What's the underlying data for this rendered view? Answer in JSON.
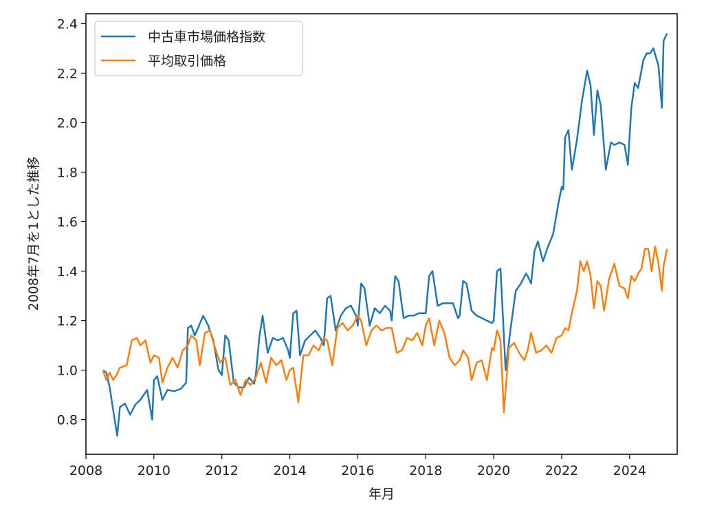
{
  "chart_data": {
    "type": "line",
    "title": "",
    "xlabel": "年月",
    "ylabel": "2008年7月を1とした推移",
    "xlim": [
      2008.0,
      2025.4
    ],
    "ylim": [
      0.66,
      2.44
    ],
    "x_ticks": [
      2008,
      2010,
      2012,
      2014,
      2016,
      2018,
      2020,
      2022,
      2024
    ],
    "y_ticks": [
      0.8,
      1.0,
      1.2,
      1.4,
      1.6,
      1.8,
      2.0,
      2.2,
      2.4
    ],
    "y_tick_labels": [
      "0.8",
      "1.0",
      "1.2",
      "1.4",
      "1.6",
      "1.8",
      "2.0",
      "2.2",
      "2.4"
    ],
    "grid": false,
    "legend_position": "top-left",
    "series": [
      {
        "name": "中古車市場価格指数",
        "color": "#1f77b4",
        "points": [
          [
            2008.5,
            1.0
          ],
          [
            2008.6,
            0.99
          ],
          [
            2008.7,
            0.93
          ],
          [
            2008.8,
            0.84
          ],
          [
            2008.92,
            0.735
          ],
          [
            2009.0,
            0.85
          ],
          [
            2009.15,
            0.865
          ],
          [
            2009.3,
            0.82
          ],
          [
            2009.45,
            0.86
          ],
          [
            2009.6,
            0.88
          ],
          [
            2009.8,
            0.92
          ],
          [
            2009.95,
            0.8
          ],
          [
            2010.0,
            0.96
          ],
          [
            2010.1,
            0.975
          ],
          [
            2010.25,
            0.88
          ],
          [
            2010.4,
            0.92
          ],
          [
            2010.6,
            0.915
          ],
          [
            2010.8,
            0.925
          ],
          [
            2010.95,
            0.95
          ],
          [
            2011.0,
            1.17
          ],
          [
            2011.1,
            1.18
          ],
          [
            2011.2,
            1.14
          ],
          [
            2011.3,
            1.17
          ],
          [
            2011.45,
            1.22
          ],
          [
            2011.6,
            1.18
          ],
          [
            2011.75,
            1.12
          ],
          [
            2011.9,
            1.0
          ],
          [
            2012.0,
            0.98
          ],
          [
            2012.1,
            1.14
          ],
          [
            2012.2,
            1.12
          ],
          [
            2012.35,
            0.95
          ],
          [
            2012.5,
            0.93
          ],
          [
            2012.65,
            0.93
          ],
          [
            2012.8,
            0.97
          ],
          [
            2012.95,
            0.945
          ],
          [
            2013.0,
            0.98
          ],
          [
            2013.1,
            1.13
          ],
          [
            2013.2,
            1.22
          ],
          [
            2013.35,
            1.07
          ],
          [
            2013.5,
            1.13
          ],
          [
            2013.65,
            1.12
          ],
          [
            2013.8,
            1.13
          ],
          [
            2013.95,
            1.08
          ],
          [
            2014.0,
            1.05
          ],
          [
            2014.1,
            1.23
          ],
          [
            2014.2,
            1.24
          ],
          [
            2014.3,
            1.06
          ],
          [
            2014.45,
            1.12
          ],
          [
            2014.6,
            1.14
          ],
          [
            2014.75,
            1.16
          ],
          [
            2014.9,
            1.13
          ],
          [
            2015.0,
            1.1
          ],
          [
            2015.1,
            1.29
          ],
          [
            2015.2,
            1.3
          ],
          [
            2015.35,
            1.16
          ],
          [
            2015.5,
            1.22
          ],
          [
            2015.65,
            1.25
          ],
          [
            2015.8,
            1.26
          ],
          [
            2015.95,
            1.22
          ],
          [
            2016.0,
            1.18
          ],
          [
            2016.1,
            1.35
          ],
          [
            2016.2,
            1.33
          ],
          [
            2016.35,
            1.18
          ],
          [
            2016.5,
            1.25
          ],
          [
            2016.65,
            1.23
          ],
          [
            2016.8,
            1.26
          ],
          [
            2016.95,
            1.24
          ],
          [
            2017.0,
            1.2
          ],
          [
            2017.1,
            1.38
          ],
          [
            2017.2,
            1.36
          ],
          [
            2017.35,
            1.21
          ],
          [
            2017.5,
            1.22
          ],
          [
            2017.65,
            1.22
          ],
          [
            2017.8,
            1.23
          ],
          [
            2017.95,
            1.23
          ],
          [
            2018.0,
            1.23
          ],
          [
            2018.1,
            1.38
          ],
          [
            2018.2,
            1.4
          ],
          [
            2018.35,
            1.26
          ],
          [
            2018.5,
            1.27
          ],
          [
            2018.65,
            1.27
          ],
          [
            2018.8,
            1.27
          ],
          [
            2018.95,
            1.21
          ],
          [
            2019.0,
            1.22
          ],
          [
            2019.1,
            1.36
          ],
          [
            2019.2,
            1.35
          ],
          [
            2019.35,
            1.24
          ],
          [
            2019.5,
            1.22
          ],
          [
            2019.65,
            1.21
          ],
          [
            2019.8,
            1.2
          ],
          [
            2019.95,
            1.19
          ],
          [
            2020.0,
            1.2
          ],
          [
            2020.1,
            1.4
          ],
          [
            2020.2,
            1.41
          ],
          [
            2020.35,
            1.0
          ],
          [
            2020.5,
            1.17
          ],
          [
            2020.65,
            1.32
          ],
          [
            2020.8,
            1.35
          ],
          [
            2020.95,
            1.39
          ],
          [
            2021.0,
            1.38
          ],
          [
            2021.1,
            1.35
          ],
          [
            2021.2,
            1.48
          ],
          [
            2021.3,
            1.52
          ],
          [
            2021.45,
            1.44
          ],
          [
            2021.6,
            1.5
          ],
          [
            2021.75,
            1.55
          ],
          [
            2021.9,
            1.67
          ],
          [
            2022.0,
            1.74
          ],
          [
            2022.05,
            1.73
          ],
          [
            2022.1,
            1.94
          ],
          [
            2022.2,
            1.97
          ],
          [
            2022.3,
            1.81
          ],
          [
            2022.45,
            1.93
          ],
          [
            2022.6,
            2.09
          ],
          [
            2022.75,
            2.21
          ],
          [
            2022.85,
            2.15
          ],
          [
            2022.95,
            1.95
          ],
          [
            2023.05,
            2.13
          ],
          [
            2023.15,
            2.07
          ],
          [
            2023.3,
            1.81
          ],
          [
            2023.45,
            1.92
          ],
          [
            2023.55,
            1.91
          ],
          [
            2023.7,
            1.92
          ],
          [
            2023.85,
            1.91
          ],
          [
            2023.95,
            1.83
          ],
          [
            2024.05,
            2.06
          ],
          [
            2024.15,
            2.16
          ],
          [
            2024.25,
            2.14
          ],
          [
            2024.4,
            2.25
          ],
          [
            2024.5,
            2.28
          ],
          [
            2024.6,
            2.28
          ],
          [
            2024.7,
            2.3
          ],
          [
            2024.85,
            2.23
          ],
          [
            2024.95,
            2.06
          ],
          [
            2025.0,
            2.33
          ],
          [
            2025.1,
            2.36
          ]
        ]
      },
      {
        "name": "平均取引価格",
        "color": "#ff7f0e",
        "points": [
          [
            2008.5,
            1.0
          ],
          [
            2008.6,
            0.96
          ],
          [
            2008.7,
            0.99
          ],
          [
            2008.8,
            0.96
          ],
          [
            2008.9,
            0.98
          ],
          [
            2009.0,
            1.01
          ],
          [
            2009.2,
            1.02
          ],
          [
            2009.35,
            1.12
          ],
          [
            2009.5,
            1.13
          ],
          [
            2009.6,
            1.1
          ],
          [
            2009.75,
            1.12
          ],
          [
            2009.9,
            1.03
          ],
          [
            2010.0,
            1.06
          ],
          [
            2010.15,
            1.05
          ],
          [
            2010.25,
            0.95
          ],
          [
            2010.4,
            1.01
          ],
          [
            2010.55,
            1.05
          ],
          [
            2010.7,
            1.01
          ],
          [
            2010.85,
            1.08
          ],
          [
            2011.0,
            1.1
          ],
          [
            2011.1,
            1.14
          ],
          [
            2011.25,
            1.12
          ],
          [
            2011.35,
            1.02
          ],
          [
            2011.5,
            1.15
          ],
          [
            2011.65,
            1.16
          ],
          [
            2011.8,
            1.09
          ],
          [
            2011.95,
            1.03
          ],
          [
            2012.0,
            1.04
          ],
          [
            2012.1,
            1.05
          ],
          [
            2012.25,
            0.94
          ],
          [
            2012.4,
            0.96
          ],
          [
            2012.55,
            0.9
          ],
          [
            2012.7,
            0.96
          ],
          [
            2012.85,
            0.94
          ],
          [
            2013.0,
            0.97
          ],
          [
            2013.15,
            1.03
          ],
          [
            2013.3,
            0.95
          ],
          [
            2013.45,
            1.05
          ],
          [
            2013.6,
            1.02
          ],
          [
            2013.75,
            1.04
          ],
          [
            2013.9,
            0.96
          ],
          [
            2014.0,
            1.0
          ],
          [
            2014.1,
            1.01
          ],
          [
            2014.25,
            0.87
          ],
          [
            2014.4,
            1.06
          ],
          [
            2014.55,
            1.06
          ],
          [
            2014.7,
            1.1
          ],
          [
            2014.85,
            1.08
          ],
          [
            2015.0,
            1.13
          ],
          [
            2015.1,
            1.12
          ],
          [
            2015.25,
            1.02
          ],
          [
            2015.4,
            1.17
          ],
          [
            2015.55,
            1.19
          ],
          [
            2015.7,
            1.16
          ],
          [
            2015.85,
            1.18
          ],
          [
            2016.0,
            1.22
          ],
          [
            2016.1,
            1.2
          ],
          [
            2016.25,
            1.1
          ],
          [
            2016.4,
            1.16
          ],
          [
            2016.55,
            1.18
          ],
          [
            2016.7,
            1.16
          ],
          [
            2016.85,
            1.17
          ],
          [
            2017.0,
            1.17
          ],
          [
            2017.15,
            1.07
          ],
          [
            2017.3,
            1.08
          ],
          [
            2017.45,
            1.13
          ],
          [
            2017.6,
            1.12
          ],
          [
            2017.75,
            1.15
          ],
          [
            2017.9,
            1.1
          ],
          [
            2018.0,
            1.18
          ],
          [
            2018.1,
            1.21
          ],
          [
            2018.25,
            1.1
          ],
          [
            2018.4,
            1.2
          ],
          [
            2018.55,
            1.15
          ],
          [
            2018.7,
            1.05
          ],
          [
            2018.85,
            1.02
          ],
          [
            2019.0,
            1.04
          ],
          [
            2019.1,
            1.08
          ],
          [
            2019.25,
            1.05
          ],
          [
            2019.35,
            0.96
          ],
          [
            2019.5,
            1.03
          ],
          [
            2019.65,
            1.04
          ],
          [
            2019.8,
            0.96
          ],
          [
            2019.95,
            1.09
          ],
          [
            2020.0,
            1.08
          ],
          [
            2020.1,
            1.16
          ],
          [
            2020.2,
            1.12
          ],
          [
            2020.3,
            0.83
          ],
          [
            2020.45,
            1.09
          ],
          [
            2020.6,
            1.11
          ],
          [
            2020.75,
            1.07
          ],
          [
            2020.9,
            1.04
          ],
          [
            2021.0,
            1.08
          ],
          [
            2021.1,
            1.15
          ],
          [
            2021.25,
            1.07
          ],
          [
            2021.4,
            1.08
          ],
          [
            2021.55,
            1.1
          ],
          [
            2021.7,
            1.07
          ],
          [
            2021.85,
            1.13
          ],
          [
            2022.0,
            1.14
          ],
          [
            2022.1,
            1.17
          ],
          [
            2022.2,
            1.16
          ],
          [
            2022.3,
            1.23
          ],
          [
            2022.45,
            1.32
          ],
          [
            2022.55,
            1.44
          ],
          [
            2022.65,
            1.4
          ],
          [
            2022.75,
            1.44
          ],
          [
            2022.85,
            1.38
          ],
          [
            2022.95,
            1.25
          ],
          [
            2023.05,
            1.36
          ],
          [
            2023.15,
            1.34
          ],
          [
            2023.25,
            1.24
          ],
          [
            2023.4,
            1.37
          ],
          [
            2023.55,
            1.43
          ],
          [
            2023.7,
            1.34
          ],
          [
            2023.85,
            1.33
          ],
          [
            2023.95,
            1.29
          ],
          [
            2024.05,
            1.38
          ],
          [
            2024.15,
            1.36
          ],
          [
            2024.25,
            1.39
          ],
          [
            2024.35,
            1.41
          ],
          [
            2024.45,
            1.49
          ],
          [
            2024.55,
            1.49
          ],
          [
            2024.65,
            1.4
          ],
          [
            2024.75,
            1.5
          ],
          [
            2024.85,
            1.43
          ],
          [
            2024.95,
            1.32
          ],
          [
            2025.0,
            1.42
          ],
          [
            2025.1,
            1.49
          ]
        ]
      }
    ]
  }
}
